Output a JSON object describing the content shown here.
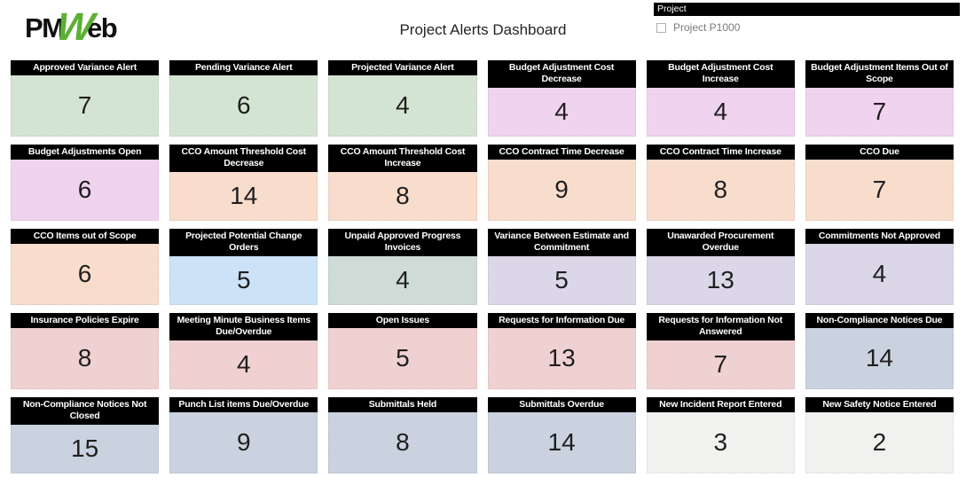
{
  "logo": {
    "pm": "PM",
    "w": "W",
    "eb": "eb",
    "green": "#5bb033"
  },
  "header": {
    "title": "Project Alerts Dashboard"
  },
  "slicer": {
    "title": "Project",
    "option_label": "Project P1000",
    "checked": false
  },
  "palette": {
    "green": "#d4e4d2",
    "orchid": "#f0d3ee",
    "peach": "#f8dccc",
    "blue": "#cce2f6",
    "sage": "#cfdbd6",
    "lavender": "#dbd7e8",
    "rose": "#f0d1d1",
    "bluegray": "#c9d2de",
    "offwhite": "#f1f2f0",
    "header_bg": "#000000",
    "header_text": "#ffffff",
    "value_text": "#1f1f1f"
  },
  "cards": [
    {
      "label": "Approved Variance Alert",
      "value": "7",
      "color": "#d4e4d2"
    },
    {
      "label": "Pending Variance Alert",
      "value": "6",
      "color": "#d4e4d2"
    },
    {
      "label": "Projected Variance Alert",
      "value": "4",
      "color": "#d4e4d2"
    },
    {
      "label": "Budget Adjustment Cost Decrease",
      "value": "4",
      "color": "#f0d3ee"
    },
    {
      "label": "Budget Adjustment Cost Increase",
      "value": "4",
      "color": "#f0d3ee"
    },
    {
      "label": "Budget Adjustment Items Out of Scope",
      "value": "7",
      "color": "#f0d3ee"
    },
    {
      "label": "Budget Adjustments Open",
      "value": "6",
      "color": "#f0d3ee"
    },
    {
      "label": "CCO Amount Threshold Cost Decrease",
      "value": "14",
      "color": "#f8dccc"
    },
    {
      "label": "CCO Amount Threshold Cost Increase",
      "value": "8",
      "color": "#f8dccc"
    },
    {
      "label": "CCO Contract Time Decrease",
      "value": "9",
      "color": "#f8dccc"
    },
    {
      "label": "CCO Contract Time Increase",
      "value": "8",
      "color": "#f8dccc"
    },
    {
      "label": "CCO Due",
      "value": "7",
      "color": "#f8dccc"
    },
    {
      "label": "CCO Items out of Scope",
      "value": "6",
      "color": "#f8dccc"
    },
    {
      "label": "Projected Potential Change Orders",
      "value": "5",
      "color": "#cce2f6"
    },
    {
      "label": "Unpaid Approved Progress Invoices",
      "value": "4",
      "color": "#cfdbd6"
    },
    {
      "label": "Variance Between Estimate and Commitment",
      "value": "5",
      "color": "#dbd7e8"
    },
    {
      "label": "Unawarded Procurement Overdue",
      "value": "13",
      "color": "#dbd7e8"
    },
    {
      "label": "Commitments Not Approved",
      "value": "4",
      "color": "#dbd7e8"
    },
    {
      "label": "Insurance Policies Expire",
      "value": "8",
      "color": "#f0d1d1"
    },
    {
      "label": "Meeting Minute Business Items Due/Overdue",
      "value": "4",
      "color": "#f0d1d1"
    },
    {
      "label": "Open Issues",
      "value": "5",
      "color": "#f0d1d1"
    },
    {
      "label": "Requests for Information Due",
      "value": "13",
      "color": "#f0d1d1"
    },
    {
      "label": "Requests for Information Not Answered",
      "value": "7",
      "color": "#f0d1d1"
    },
    {
      "label": "Non-Compliance Notices Due",
      "value": "14",
      "color": "#c9d2de"
    },
    {
      "label": "Non-Compliance Notices Not Closed",
      "value": "15",
      "color": "#c9d2de"
    },
    {
      "label": "Punch List items Due/Overdue",
      "value": "9",
      "color": "#c9d2de"
    },
    {
      "label": "Submittals Held",
      "value": "8",
      "color": "#c9d2de"
    },
    {
      "label": "Submittals Overdue",
      "value": "14",
      "color": "#c9d2de"
    },
    {
      "label": "New Incident Report Entered",
      "value": "3",
      "color": "#f1f2f0"
    },
    {
      "label": "New Safety Notice Entered",
      "value": "2",
      "color": "#f1f2f0"
    }
  ]
}
